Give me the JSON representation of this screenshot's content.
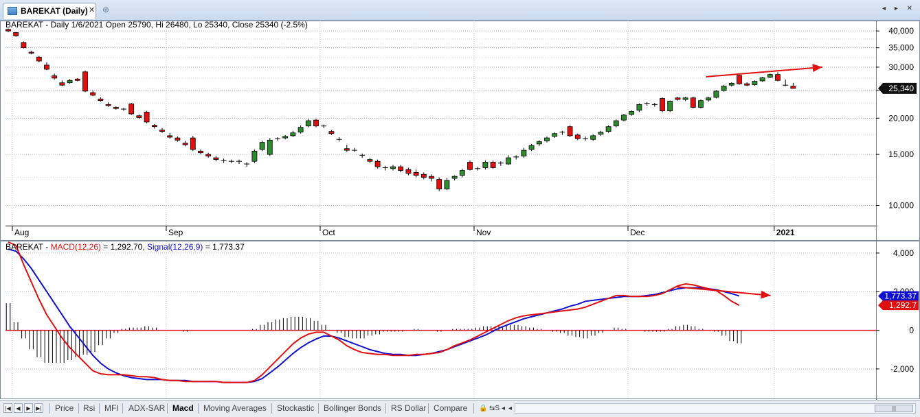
{
  "window": {
    "tab_title": "BAREKAT (Daily)",
    "tab_close": "✕",
    "tab_new": "⊕",
    "controls": "◂ ▸ ✕"
  },
  "chart_data": [
    {
      "type": "candlestick",
      "title": "BAREKAT - Daily 1/6/2021 Open 25790, Hi 26480, Lo 25340, Close 25340 (-2.5%)",
      "scale": "log",
      "ylim": [
        8800,
        42500
      ],
      "y_ticks": [
        10000,
        15000,
        20000,
        25000,
        30000,
        35000,
        40000
      ],
      "y_tick_labels": [
        "10,000",
        "15,000",
        "20,000",
        "25,000",
        "30,000",
        "35,000",
        "40,000"
      ],
      "x_labels": [
        {
          "label": "Aug",
          "index": 0
        },
        {
          "label": "Sep",
          "index": 20
        },
        {
          "label": "Oct",
          "index": 40
        },
        {
          "label": "Nov",
          "index": 60
        },
        {
          "label": "Dec",
          "index": 80
        },
        {
          "label": "2021",
          "index": 99,
          "bold": true
        }
      ],
      "last_price_label": "25,340",
      "last_price": 25340,
      "up_color": "#2e8b2e",
      "down_color": "#e01010",
      "close": [
        40000,
        38500,
        35000,
        33500,
        31500,
        29500,
        27500,
        26000,
        27000,
        27000,
        24800,
        24000,
        23000,
        22100,
        21600,
        21400,
        20700,
        20100,
        19400,
        18700,
        18000,
        17200,
        16800,
        16200,
        15600,
        15200,
        14800,
        14400,
        14200,
        14200,
        14200,
        13800,
        15400,
        16500,
        16800,
        17000,
        17300,
        17800,
        18600,
        19600,
        18800,
        18700,
        17700,
        16800,
        15500,
        15500,
        14800,
        14200,
        13600,
        13400,
        13600,
        13200,
        12900,
        12700,
        12500,
        12400,
        11400,
        12200,
        12600,
        13200,
        13300,
        13400,
        14100,
        13500,
        13900,
        14600,
        14600,
        15500,
        16100,
        16600,
        17100,
        17700,
        17800,
        17400,
        17000,
        16900,
        17400,
        17900,
        18700,
        19600,
        20500,
        21100,
        22300,
        22400,
        22300,
        21200,
        22900,
        23200,
        23500,
        21800,
        23000,
        23500,
        24800,
        25800,
        26400,
        26300,
        26000,
        26800,
        27600,
        28300,
        27000,
        26000,
        25340
      ],
      "open": [
        40500,
        39500,
        36500,
        33800,
        32500,
        30500,
        28000,
        26500,
        26500,
        27300,
        28900,
        24500,
        23300,
        22300,
        21800,
        21500,
        22400,
        20400,
        21000,
        18900,
        18200,
        17400,
        17100,
        16400,
        17100,
        15400,
        15000,
        14600,
        14300,
        14200,
        14200,
        13900,
        14200,
        15600,
        15000,
        16900,
        17100,
        17400,
        17900,
        18800,
        19700,
        18800,
        18000,
        16900,
        15700,
        15500,
        14900,
        14400,
        14200,
        13500,
        13400,
        13600,
        13300,
        13000,
        12800,
        12600,
        12300,
        11400,
        12400,
        12700,
        14100,
        13400,
        13500,
        14100,
        14000,
        13900,
        14700,
        14800,
        15600,
        16300,
        16700,
        17300,
        17900,
        18700,
        17500,
        17000,
        16900,
        17600,
        18000,
        18800,
        19700,
        20600,
        21300,
        22500,
        22300,
        23400,
        21200,
        23500,
        23200,
        23500,
        21800,
        23100,
        23600,
        24900,
        26000,
        28100,
        26300,
        26100,
        26900,
        27700,
        28300,
        26000,
        25790
      ],
      "high": [
        40800,
        39600,
        36800,
        34200,
        32800,
        31200,
        28500,
        27000,
        27300,
        27500,
        29200,
        24900,
        23600,
        22700,
        22000,
        21700,
        22600,
        20600,
        21200,
        19100,
        18500,
        17800,
        17300,
        16700,
        17400,
        15600,
        15200,
        14800,
        14500,
        14400,
        14400,
        14100,
        15600,
        16700,
        17100,
        17200,
        17500,
        18100,
        18900,
        19900,
        19900,
        19000,
        18200,
        17200,
        16200,
        15800,
        15100,
        14600,
        14400,
        13700,
        13800,
        13800,
        13500,
        13300,
        13000,
        12800,
        12500,
        12400,
        12700,
        13400,
        14300,
        13600,
        14300,
        14300,
        14200,
        14900,
        14900,
        15800,
        16300,
        16800,
        17300,
        17900,
        18100,
        18900,
        17700,
        17300,
        17600,
        18100,
        18900,
        19800,
        20700,
        21300,
        22500,
        22700,
        22600,
        23600,
        23000,
        23700,
        23700,
        23700,
        23200,
        23700,
        25000,
        26000,
        26600,
        28300,
        26600,
        27000,
        27800,
        28500,
        28800,
        27200,
        26480
      ],
      "low": [
        39600,
        38200,
        34800,
        33200,
        31200,
        29300,
        27200,
        25800,
        26300,
        26800,
        24600,
        23800,
        22800,
        21900,
        21400,
        21200,
        20500,
        19900,
        19200,
        18400,
        17800,
        17000,
        16600,
        16000,
        15400,
        15000,
        14600,
        14200,
        14000,
        14000,
        13900,
        13600,
        14000,
        15400,
        14800,
        16700,
        16900,
        17200,
        17700,
        18600,
        18600,
        18500,
        17500,
        16600,
        15300,
        15300,
        14600,
        14000,
        13400,
        13200,
        13200,
        13000,
        12700,
        12500,
        12300,
        12100,
        11200,
        11300,
        12200,
        12500,
        13200,
        13200,
        13300,
        13400,
        13700,
        13800,
        14400,
        14600,
        15400,
        16000,
        16500,
        17100,
        17500,
        17200,
        16800,
        16700,
        16700,
        17400,
        17800,
        18600,
        19500,
        20400,
        21000,
        22100,
        21900,
        21000,
        21000,
        23000,
        22900,
        21600,
        21600,
        22800,
        23400,
        24700,
        25700,
        26100,
        25800,
        25900,
        26700,
        27500,
        26800,
        25800,
        25340
      ],
      "annotation": {
        "type": "arrow",
        "from": {
          "index": 90,
          "value": 27800
        },
        "to": {
          "index": 104,
          "value": 30000
        },
        "color": "#e01010"
      }
    },
    {
      "type": "macd",
      "title_prefix": "BAREKAT - ",
      "macd_label": "MACD(12,26)",
      "macd_value_text": " = 1,292.70, ",
      "signal_label": "Signal(12,26,9)",
      "signal_value_text": " = 1,773.37",
      "macd_value": 1292.7,
      "signal_value": 1773.37,
      "macd_badge": "1,292.7",
      "signal_badge": "1,773.37",
      "ylim": [
        -3600,
        4600
      ],
      "y_ticks": [
        -2000,
        0,
        2000,
        4000
      ],
      "y_tick_labels": [
        "-2,000",
        "0",
        "2,000",
        "4,000"
      ],
      "macd_color": "#e01010",
      "signal_color": "#1010d0",
      "zero_line_color": "#e01010",
      "macd": [
        5200,
        4400,
        3400,
        2500,
        1600,
        800,
        200,
        -400,
        -900,
        -1300,
        -1700,
        -2100,
        -2250,
        -2300,
        -2300,
        -2300,
        -2350,
        -2400,
        -2400,
        -2450,
        -2550,
        -2600,
        -2600,
        -2650,
        -2650,
        -2650,
        -2650,
        -2650,
        -2700,
        -2700,
        -2700,
        -2700,
        -2600,
        -2300,
        -1900,
        -1500,
        -1100,
        -700,
        -400,
        -200,
        -100,
        -100,
        -300,
        -500,
        -800,
        -1000,
        -1150,
        -1200,
        -1250,
        -1250,
        -1300,
        -1300,
        -1300,
        -1250,
        -1250,
        -1200,
        -1150,
        -1000,
        -800,
        -650,
        -500,
        -300,
        -100,
        100,
        300,
        500,
        650,
        750,
        800,
        850,
        900,
        950,
        1000,
        1050,
        1100,
        1200,
        1350,
        1500,
        1650,
        1800,
        1800,
        1750,
        1750,
        1750,
        1800,
        1900,
        2100,
        2300,
        2400,
        2350,
        2250,
        2150,
        2050,
        1800,
        1500,
        1292.7
      ],
      "signal": [
        4200,
        4100,
        3700,
        3200,
        2600,
        2000,
        1400,
        800,
        200,
        -300,
        -800,
        -1300,
        -1700,
        -2000,
        -2200,
        -2350,
        -2450,
        -2500,
        -2550,
        -2550,
        -2550,
        -2600,
        -2600,
        -2600,
        -2650,
        -2650,
        -2650,
        -2650,
        -2700,
        -2700,
        -2700,
        -2700,
        -2650,
        -2500,
        -2200,
        -1900,
        -1550,
        -1200,
        -900,
        -650,
        -450,
        -300,
        -300,
        -400,
        -550,
        -700,
        -850,
        -1000,
        -1100,
        -1200,
        -1250,
        -1250,
        -1300,
        -1300,
        -1250,
        -1200,
        -1100,
        -1000,
        -850,
        -700,
        -550,
        -400,
        -250,
        -50,
        150,
        300,
        450,
        600,
        700,
        800,
        900,
        1000,
        1100,
        1250,
        1350,
        1500,
        1550,
        1600,
        1650,
        1700,
        1750,
        1750,
        1750,
        1800,
        1850,
        1950,
        2050,
        2150,
        2200,
        2200,
        2200,
        2150,
        2100,
        2000,
        1900,
        1773.37
      ],
      "annotation": {
        "type": "arrow",
        "from": {
          "index": 86,
          "value": 2250
        },
        "to": {
          "index": 98,
          "value": 1800
        },
        "color": "#e01010"
      }
    }
  ],
  "bottom_tabs": {
    "nav": [
      "|◀",
      "◀",
      "▶",
      "▶|"
    ],
    "tabs": [
      "Price",
      "Rsi",
      "MFI",
      "ADX-SAR",
      "Macd",
      "Moving Averages",
      "Stockastic",
      "Bollinger Bonds",
      "RS Dollar",
      "Compare"
    ],
    "active": "Macd",
    "controls": [
      "🔒",
      "⇆S",
      "◂",
      "◂"
    ],
    "scroll_thumb": "|||"
  }
}
